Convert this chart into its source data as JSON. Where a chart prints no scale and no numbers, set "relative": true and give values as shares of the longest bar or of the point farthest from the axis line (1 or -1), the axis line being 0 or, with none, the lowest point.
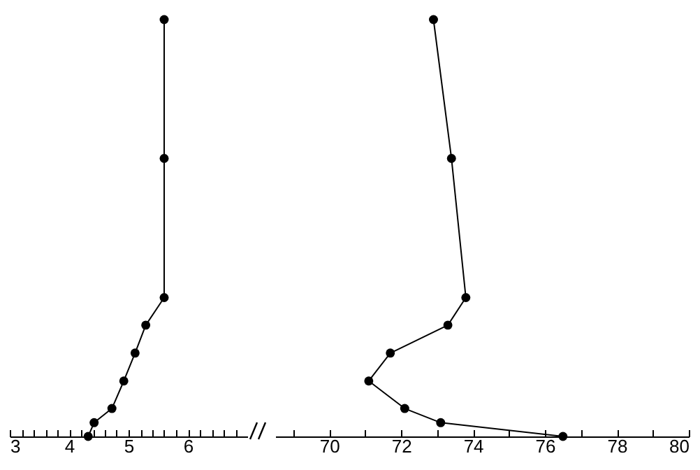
{
  "chart_data": [
    {
      "type": "line",
      "relative": true,
      "x": [
        5.6,
        5.6,
        5.6,
        5.29,
        5.11,
        4.92,
        4.72,
        4.42,
        4.32
      ],
      "values": [
        1,
        0.667,
        0.333,
        0.267,
        0.2,
        0.133,
        0.067,
        0.033,
        0
      ],
      "color": "#000000",
      "marker": "circle",
      "line_style": "solid",
      "tick_labels": "x",
      "xlim": [
        3,
        7
      ],
      "xticks": [
        3,
        {
          "value": 3.2,
          "label": null
        },
        {
          "value": 3.4,
          "label": null
        },
        {
          "value": 3.6,
          "label": null
        },
        {
          "value": 3.8,
          "label": null
        },
        4,
        {
          "value": 4.2,
          "label": null
        },
        {
          "value": 4.4,
          "label": null
        },
        {
          "value": 4.6,
          "label": null
        },
        {
          "value": 4.8,
          "label": null
        },
        5,
        {
          "value": 5.2,
          "label": null
        },
        {
          "value": 5.4,
          "label": null
        },
        {
          "value": 5.6,
          "label": null
        },
        {
          "value": 5.8,
          "label": null
        },
        6,
        {
          "value": 6.2,
          "label": null
        },
        {
          "value": 6.4,
          "label": null
        },
        {
          "value": 6.6,
          "label": null
        },
        {
          "value": 6.8,
          "label": null
        }
      ]
    },
    {
      "type": "line",
      "relative": true,
      "x": [
        72.9,
        73.4,
        73.8,
        73.3,
        71.7,
        71.1,
        72.1,
        73.1,
        76.5
      ],
      "values": [
        1,
        0.667,
        0.333,
        0.267,
        0.2,
        0.133,
        0.067,
        0.033,
        0
      ],
      "color": "#000000",
      "marker": "circle",
      "line_style": "solid",
      "tick_labels": "x",
      "xlim": [
        68.5,
        80
      ],
      "xticks": [
        {
          "value": 69,
          "label": null
        },
        70,
        {
          "value": 71,
          "label": null
        },
        72,
        {
          "value": 73,
          "label": null
        },
        74,
        {
          "value": 75,
          "label": null
        },
        76,
        {
          "value": 77,
          "label": null
        },
        78,
        {
          "value": 79,
          "label": null
        },
        80
      ]
    }
  ]
}
